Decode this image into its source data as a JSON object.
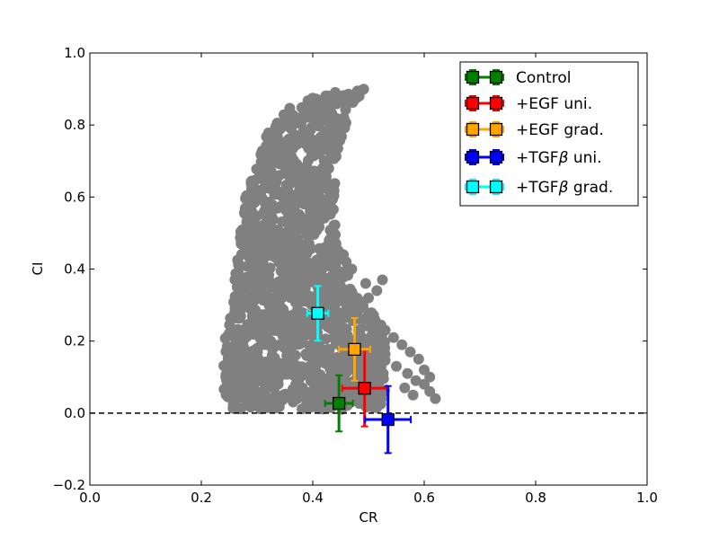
{
  "chart_data": {
    "type": "scatter",
    "xlabel": "CR",
    "ylabel": "CI",
    "xlim": [
      0.0,
      1.0
    ],
    "ylim": [
      -0.2,
      1.0
    ],
    "xticks": [
      "0.0",
      "0.2",
      "0.4",
      "0.6",
      "0.8",
      "1.0"
    ],
    "yticks": [
      "−0.2",
      "0.0",
      "0.2",
      "0.4",
      "0.6",
      "0.8",
      "1.0"
    ],
    "grid": false,
    "reference_line": {
      "y": 0.0,
      "style": "dashed",
      "color": "#000000"
    },
    "cloud": {
      "color": "#808080",
      "boundary": {
        "upper_ci_vs_cr": [
          [
            0.25,
            0.24
          ],
          [
            0.28,
            0.62
          ],
          [
            0.32,
            0.78
          ],
          [
            0.36,
            0.85
          ],
          [
            0.4,
            0.88
          ],
          [
            0.46,
            0.9
          ],
          [
            0.52,
            0.92
          ]
        ],
        "left_cr_vs_ci": [
          [
            0.0,
            0.26
          ],
          [
            0.04,
            0.24
          ],
          [
            0.1,
            0.235
          ],
          [
            0.2,
            0.24
          ],
          [
            0.3,
            0.245
          ],
          [
            0.4,
            0.25
          ],
          [
            0.5,
            0.26
          ],
          [
            0.6,
            0.27
          ],
          [
            0.7,
            0.285
          ],
          [
            0.8,
            0.31
          ],
          [
            0.85,
            0.325
          ],
          [
            0.9,
            0.36
          ],
          [
            0.92,
            0.41
          ]
        ],
        "right_cr_vs_ci": [
          [
            0.0,
            0.4
          ],
          [
            0.02,
            0.555
          ],
          [
            0.05,
            0.58
          ],
          [
            0.1,
            0.595
          ],
          [
            0.15,
            0.59
          ],
          [
            0.2,
            0.56
          ],
          [
            0.25,
            0.53
          ],
          [
            0.3,
            0.49
          ],
          [
            0.35,
            0.47
          ],
          [
            0.4,
            0.46
          ],
          [
            0.5,
            0.44
          ],
          [
            0.6,
            0.44
          ],
          [
            0.7,
            0.44
          ],
          [
            0.8,
            0.46
          ],
          [
            0.86,
            0.48
          ],
          [
            0.9,
            0.5
          ],
          [
            0.92,
            0.52
          ]
        ]
      }
    },
    "series": [
      {
        "name": "Control",
        "color": "#008000",
        "x": 0.447,
        "y": 0.027,
        "xerr": 0.025,
        "yerr": 0.078
      },
      {
        "name": "+EGF uni.",
        "color": "#ff0000",
        "x": 0.493,
        "y": 0.069,
        "xerr": 0.04,
        "yerr": 0.106
      },
      {
        "name": "+EGF grad.",
        "color": "#ffa500",
        "x": 0.475,
        "y": 0.177,
        "xerr": 0.028,
        "yerr": 0.087
      },
      {
        "name": "+TGF",
        "name_suffix": "β",
        "name_rest": " uni.",
        "color": "#0000ff",
        "x": 0.535,
        "y": -0.018,
        "xerr": 0.041,
        "yerr": 0.093
      },
      {
        "name": "+TGF",
        "name_suffix": "β",
        "name_rest": " grad.",
        "color": "#00ffff",
        "x": 0.409,
        "y": 0.277,
        "xerr": 0.019,
        "yerr": 0.076
      }
    ],
    "legend": {
      "placement": "top-right"
    }
  }
}
